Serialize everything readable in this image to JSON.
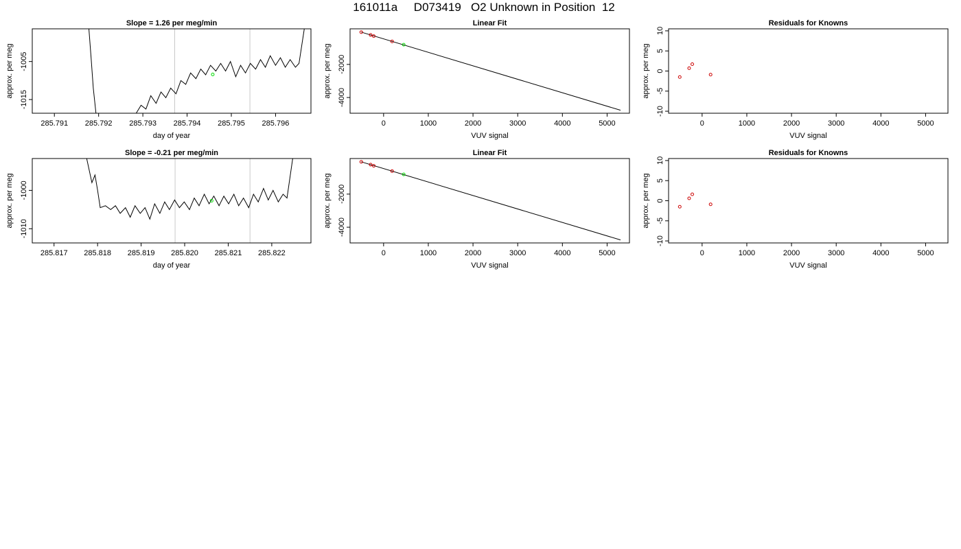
{
  "page_title": "161011a     D073419   O2 Unknown in Position  12",
  "colors": {
    "line": "#000000",
    "known_point": "#cc0000",
    "unknown_point": "#00dd00",
    "marker_line": "#c8c8c8",
    "frame": "#000000"
  },
  "chart_data": [
    {
      "id": "timeseries-1",
      "type": "line",
      "title": "Slope =  1.26  per meg/min",
      "xlabel": "day of year",
      "ylabel": "approx. per meg",
      "xlim": [
        285.7905,
        285.7968
      ],
      "ylim": [
        -1018.6,
        -996.4
      ],
      "xticks": [
        "285.791",
        "285.792",
        "285.793",
        "285.794",
        "285.795",
        "285.796"
      ],
      "yticks": [
        "-1005",
        "-1015"
      ],
      "ytick_values": [
        -1005,
        -1015
      ],
      "vlines": [
        285.79372,
        285.79542
      ],
      "unknown_point": {
        "x": 285.79458,
        "y": -1008.4
      },
      "series": [
        {
          "values": [
            [
              285.79178,
              -996.4
            ],
            [
              285.79183,
              -1004
            ],
            [
              285.79188,
              -1012
            ],
            [
              285.79194,
              -1018.6
            ],
            [
              285.79285,
              -1018.6
            ],
            [
              285.79296,
              -1016.5
            ],
            [
              285.79307,
              -1017.5
            ],
            [
              285.79318,
              -1014
            ],
            [
              285.7933,
              -1016
            ],
            [
              285.79341,
              -1013
            ],
            [
              285.79352,
              -1014.5
            ],
            [
              285.79363,
              -1012
            ],
            [
              285.79375,
              -1013.5
            ],
            [
              285.79386,
              -1010
            ],
            [
              285.79397,
              -1011
            ],
            [
              285.79408,
              -1008
            ],
            [
              285.7942,
              -1009.5
            ],
            [
              285.79431,
              -1007
            ],
            [
              285.79442,
              -1008.5
            ],
            [
              285.79453,
              -1006
            ],
            [
              285.79465,
              -1007.5
            ],
            [
              285.79476,
              -1005.5
            ],
            [
              285.79487,
              -1007.5
            ],
            [
              285.79498,
              -1005
            ],
            [
              285.7951,
              -1009
            ],
            [
              285.79521,
              -1006
            ],
            [
              285.79532,
              -1008
            ],
            [
              285.79543,
              -1005.5
            ],
            [
              285.79555,
              -1007
            ],
            [
              285.79566,
              -1004.5
            ],
            [
              285.79577,
              -1006.5
            ],
            [
              285.79588,
              -1003.5
            ],
            [
              285.796,
              -1006
            ],
            [
              285.79611,
              -1004
            ],
            [
              285.79622,
              -1006.5
            ],
            [
              285.79633,
              -1004.5
            ],
            [
              285.79645,
              -1006.5
            ],
            [
              285.79653,
              -1005.5
            ],
            [
              285.79665,
              -996.4
            ]
          ]
        }
      ]
    },
    {
      "id": "linear-fit-1",
      "type": "line",
      "title": "Linear Fit",
      "xlabel": "VUV signal",
      "ylabel": "approx. per meg",
      "xlim": [
        -750,
        5500
      ],
      "ylim": [
        -4950,
        150
      ],
      "xticks": [
        "0",
        "1000",
        "2000",
        "3000",
        "4000",
        "5000"
      ],
      "xtick_values": [
        0,
        1000,
        2000,
        3000,
        4000,
        5000
      ],
      "yticks": [
        "-2000",
        "-4000"
      ],
      "ytick_values": [
        -2000,
        -4000
      ],
      "fit_line": {
        "x": [
          -500,
          5300
        ],
        "y": [
          -50,
          -4770
        ]
      },
      "known_points": {
        "x": [
          -500,
          -290,
          -220,
          190
        ],
        "y": [
          -50,
          -220,
          -290,
          -610
        ]
      },
      "unknown_point": {
        "x": 450,
        "y": -810
      }
    },
    {
      "id": "residuals-1",
      "type": "scatter",
      "title": "Residuals for Knowns",
      "xlabel": "VUV signal",
      "ylabel": "approx. per meg",
      "xlim": [
        -750,
        5500
      ],
      "ylim": [
        -10.5,
        10.5
      ],
      "xticks": [
        "0",
        "1000",
        "2000",
        "3000",
        "4000",
        "5000"
      ],
      "xtick_values": [
        0,
        1000,
        2000,
        3000,
        4000,
        5000
      ],
      "yticks": [
        "10",
        "5",
        "0",
        "-5",
        "-10"
      ],
      "ytick_values": [
        10,
        5,
        0,
        -5,
        -10
      ],
      "known_points": {
        "x": [
          -500,
          -290,
          -220,
          190
        ],
        "y": [
          -1.5,
          0.7,
          1.7,
          -0.9
        ]
      }
    },
    {
      "id": "timeseries-2",
      "type": "line",
      "title": "Slope =  -0.21  per meg/min",
      "xlabel": "day of year",
      "ylabel": "approx. per meg",
      "xlim": [
        285.8165,
        285.8229
      ],
      "ylim": [
        -1013.7,
        -991.7
      ],
      "xticks": [
        "285.817",
        "285.818",
        "285.819",
        "285.820",
        "285.821",
        "285.822"
      ],
      "yticks": [
        "-1000",
        "-1010"
      ],
      "ytick_values": [
        -1000,
        -1010
      ],
      "vlines": [
        285.81978,
        285.8215
      ],
      "unknown_point": {
        "x": 285.82062,
        "y": -1002.7
      },
      "series": [
        {
          "values": [
            [
              285.81775,
              -991.7
            ],
            [
              285.81787,
              -998
            ],
            [
              285.81794,
              -996
            ],
            [
              285.818,
              -1000
            ],
            [
              285.81806,
              -1004.5
            ],
            [
              285.81818,
              -1004
            ],
            [
              285.8183,
              -1005
            ],
            [
              285.81841,
              -1004
            ],
            [
              285.81852,
              -1006
            ],
            [
              285.81864,
              -1004.5
            ],
            [
              285.81875,
              -1007
            ],
            [
              285.81886,
              -1004
            ],
            [
              285.81898,
              -1006
            ],
            [
              285.81909,
              -1004.5
            ],
            [
              285.8192,
              -1007.5
            ],
            [
              285.81931,
              -1003.5
            ],
            [
              285.81943,
              -1006
            ],
            [
              285.81954,
              -1003
            ],
            [
              285.81965,
              -1005
            ],
            [
              285.81977,
              -1002.5
            ],
            [
              285.81988,
              -1004.5
            ],
            [
              285.81999,
              -1003
            ],
            [
              285.82011,
              -1005
            ],
            [
              285.82022,
              -1002
            ],
            [
              285.82033,
              -1004
            ],
            [
              285.82045,
              -1001
            ],
            [
              285.82056,
              -1003.5
            ],
            [
              285.82067,
              -1001.5
            ],
            [
              285.82079,
              -1004
            ],
            [
              285.8209,
              -1001.5
            ],
            [
              285.82101,
              -1003.5
            ],
            [
              285.82113,
              -1001
            ],
            [
              285.82124,
              -1004
            ],
            [
              285.82135,
              -1002
            ],
            [
              285.82147,
              -1004.5
            ],
            [
              285.82158,
              -1001
            ],
            [
              285.82169,
              -1003
            ],
            [
              285.82181,
              -999.5
            ],
            [
              285.82192,
              -1002.5
            ],
            [
              285.82203,
              -1000
            ],
            [
              285.82215,
              -1003
            ],
            [
              285.82226,
              -1001
            ],
            [
              285.82235,
              -1002
            ],
            [
              285.82248,
              -991.7
            ]
          ]
        }
      ]
    },
    {
      "id": "linear-fit-2",
      "type": "line",
      "title": "Linear Fit",
      "xlabel": "VUV signal",
      "ylabel": "approx. per meg",
      "xlim": [
        -750,
        5500
      ],
      "ylim": [
        -4950,
        150
      ],
      "xticks": [
        "0",
        "1000",
        "2000",
        "3000",
        "4000",
        "5000"
      ],
      "xtick_values": [
        0,
        1000,
        2000,
        3000,
        4000,
        5000
      ],
      "yticks": [
        "-2000",
        "-4000"
      ],
      "ytick_values": [
        -2000,
        -4000
      ],
      "fit_line": {
        "x": [
          -500,
          5300
        ],
        "y": [
          -50,
          -4770
        ]
      },
      "known_points": {
        "x": [
          -500,
          -290,
          -220,
          190
        ],
        "y": [
          -50,
          -220,
          -290,
          -610
        ]
      },
      "unknown_point": {
        "x": 450,
        "y": -810
      }
    },
    {
      "id": "residuals-2",
      "type": "scatter",
      "title": "Residuals for Knowns",
      "xlabel": "VUV signal",
      "ylabel": "approx. per meg",
      "xlim": [
        -750,
        5500
      ],
      "ylim": [
        -10.5,
        10.5
      ],
      "xticks": [
        "0",
        "1000",
        "2000",
        "3000",
        "4000",
        "5000"
      ],
      "xtick_values": [
        0,
        1000,
        2000,
        3000,
        4000,
        5000
      ],
      "yticks": [
        "10",
        "5",
        "0",
        "-5",
        "-10"
      ],
      "ytick_values": [
        10,
        5,
        0,
        -5,
        -10
      ],
      "known_points": {
        "x": [
          -500,
          -290,
          -220,
          190
        ],
        "y": [
          -1.5,
          0.6,
          1.6,
          -0.9
        ]
      }
    }
  ]
}
